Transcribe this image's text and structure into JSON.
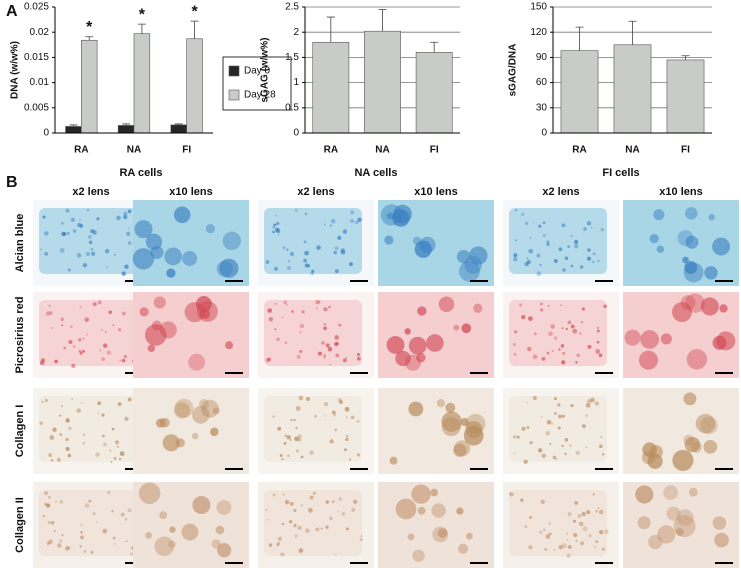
{
  "panel_labels": [
    "A",
    "B"
  ],
  "chart_data": [
    {
      "type": "bar",
      "ylabel": "DNA (w/w%)",
      "categories": [
        "RA",
        "NA",
        "FI"
      ],
      "series": [
        {
          "name": "Day 0",
          "color": "#262626",
          "values": [
            0.0013,
            0.0015,
            0.0016
          ],
          "errors": [
            0.0003,
            0.0003,
            0.0002
          ]
        },
        {
          "name": "Day 28",
          "color": "#c8cbc8",
          "values": [
            0.0184,
            0.0197,
            0.0187
          ],
          "errors": [
            0.0007,
            0.0019,
            0.0035
          ]
        }
      ],
      "annotations": [
        "*",
        "*",
        "*"
      ],
      "ylim": [
        0,
        0.025
      ],
      "yticks": [
        0,
        0.005,
        0.01,
        0.015,
        0.02,
        0.025
      ],
      "grid": false,
      "legend": "right"
    },
    {
      "type": "bar",
      "ylabel": "sGAG (w/w%)",
      "categories": [
        "RA",
        "NA",
        "FI"
      ],
      "series": [
        {
          "color": "#c8cbc8",
          "values": [
            1.8,
            2.02,
            1.6
          ],
          "errors": [
            0.5,
            0.43,
            0.2
          ]
        }
      ],
      "ylim": [
        0,
        2.5
      ],
      "yticks": [
        0,
        0.5,
        1,
        1.5,
        2,
        2.5
      ],
      "grid": true
    },
    {
      "type": "bar",
      "ylabel": "sGAG/DNA",
      "categories": [
        "RA",
        "NA",
        "FI"
      ],
      "series": [
        {
          "color": "#c8cbc8",
          "values": [
            98,
            105,
            87
          ],
          "errors": [
            28,
            28,
            5
          ]
        }
      ],
      "ylim": [
        0,
        150
      ],
      "yticks": [
        0,
        30,
        60,
        90,
        120,
        150
      ],
      "grid": true
    }
  ],
  "micrographs": {
    "columns": [
      "RA cells",
      "NA cells",
      "FI cells"
    ],
    "lenses": [
      "x2 lens",
      "x10 lens"
    ],
    "rows": [
      "Alcian blue",
      "Picrosirius red",
      "Collagen I",
      "Collagen II"
    ]
  }
}
